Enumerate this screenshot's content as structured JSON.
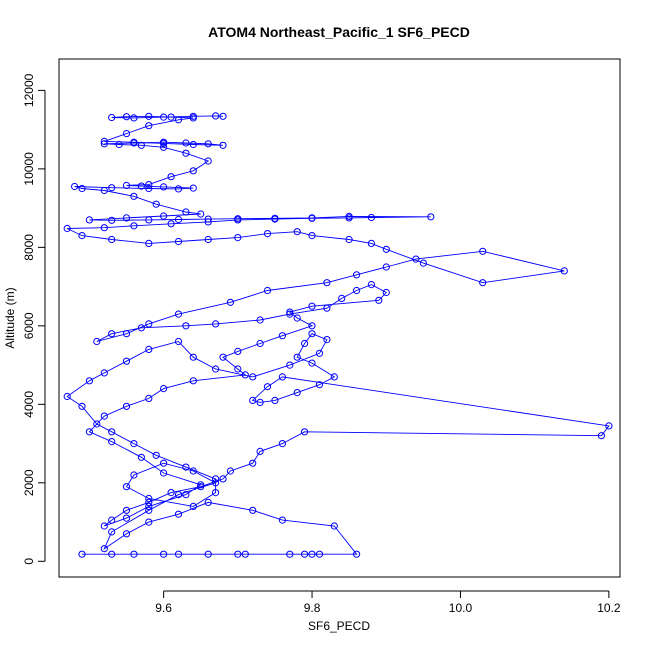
{
  "chart_data": {
    "type": "line",
    "title": "ATOM4 Northeast_Pacific_1 SF6_PECD",
    "xlabel": "SF6_PECD",
    "ylabel": "Altitude (m)",
    "xlim": [
      9.459,
      10.215
    ],
    "ylim": [
      -400,
      12800
    ],
    "xticks": [
      9.6,
      9.8,
      10.0,
      10.2
    ],
    "xtick_labels": [
      "9.6",
      "9.8",
      "10.0",
      "10.2"
    ],
    "yticks": [
      0,
      2000,
      4000,
      6000,
      8000,
      10000,
      12000
    ],
    "ytick_labels": [
      "0",
      "2000",
      "4000",
      "6000",
      "8000",
      "10000",
      "12000"
    ],
    "markers": "open-circle",
    "grid": false,
    "colors": {
      "series": "#0000ff",
      "axes": "#000000"
    },
    "series": [
      {
        "x": [
          9.49,
          9.53,
          9.56,
          9.6,
          9.62,
          9.66,
          9.7,
          9.71,
          9.77,
          9.79,
          9.8,
          9.81,
          9.86,
          9.83,
          9.76,
          9.72,
          9.66,
          9.62,
          9.58,
          9.55,
          9.52,
          9.53,
          9.58,
          9.62,
          9.67,
          9.64,
          9.6,
          9.56,
          9.55,
          9.58,
          9.64,
          9.67,
          9.67,
          9.63,
          9.59,
          9.56,
          9.53,
          9.51,
          9.49,
          9.47,
          9.5,
          9.52,
          9.55,
          9.58,
          9.62,
          9.64,
          9.67,
          9.72,
          9.77,
          9.81,
          9.82,
          9.8,
          9.79,
          9.78,
          9.8,
          9.83,
          9.81,
          9.78,
          9.75,
          9.73,
          9.72,
          9.74,
          9.76,
          10.2,
          10.19,
          9.79,
          9.76,
          9.73,
          9.72,
          9.69,
          9.68,
          9.65,
          9.61,
          9.58,
          9.55,
          9.53,
          9.52,
          9.55,
          9.58,
          9.63,
          9.65,
          9.6,
          9.57,
          9.53,
          9.5,
          9.52,
          9.55,
          9.58,
          9.6,
          9.64,
          9.71,
          9.7,
          9.68,
          9.7,
          9.73,
          9.76,
          9.8,
          9.78,
          9.77,
          9.8,
          9.89,
          9.9,
          9.88,
          9.86,
          9.84,
          9.82,
          9.77,
          9.73,
          9.67,
          9.63,
          9.57,
          9.53,
          9.51,
          9.55,
          9.58,
          9.62,
          9.69,
          9.74,
          9.82,
          9.86,
          9.9,
          9.94,
          10.03,
          10.14,
          10.03,
          9.95,
          9.9,
          9.88,
          9.85,
          9.8,
          9.78,
          9.74,
          9.7,
          9.66,
          9.62,
          9.58,
          9.53,
          9.49,
          9.47,
          9.52,
          9.56,
          9.61,
          9.66,
          9.7,
          9.75,
          9.8,
          9.85,
          9.88,
          9.96,
          9.85,
          9.8,
          9.75,
          9.7,
          9.66,
          9.62,
          9.58,
          9.53,
          9.5,
          9.55,
          9.6,
          9.65,
          9.63,
          9.59,
          9.56,
          9.52,
          9.49,
          9.48,
          9.53,
          9.58,
          9.62,
          9.64,
          9.6,
          9.57,
          9.55,
          9.58,
          9.61,
          9.64,
          9.66,
          9.63,
          9.6,
          9.57,
          9.54,
          9.52,
          9.56,
          9.6,
          9.63,
          9.66,
          9.68,
          9.64,
          9.6,
          9.56,
          9.52,
          9.55,
          9.58,
          9.62,
          9.64,
          9.61,
          9.58,
          9.55,
          9.53,
          9.56,
          9.6,
          9.64,
          9.67,
          9.68
        ],
        "y": [
          180,
          180,
          180,
          180,
          180,
          180,
          180,
          180,
          180,
          180,
          180,
          180,
          180,
          900,
          1050,
          1300,
          1500,
          1200,
          1000,
          700,
          320,
          750,
          1300,
          1700,
          2000,
          2300,
          2500,
          2200,
          1900,
          1600,
          1400,
          1750,
          2100,
          2400,
          2700,
          3000,
          3300,
          3500,
          3950,
          4200,
          4600,
          4800,
          5100,
          5400,
          5600,
          5200,
          4900,
          4700,
          5000,
          5300,
          5650,
          5800,
          5550,
          5200,
          5050,
          4700,
          4500,
          4300,
          4100,
          4050,
          4100,
          4450,
          4700,
          3450,
          3200,
          3300,
          3000,
          2800,
          2500,
          2300,
          2100,
          1900,
          1750,
          1500,
          1300,
          1050,
          900,
          1100,
          1400,
          1700,
          1950,
          2250,
          2650,
          3050,
          3300,
          3700,
          3950,
          4150,
          4400,
          4600,
          4750,
          4900,
          5200,
          5350,
          5550,
          5750,
          6000,
          6200,
          6350,
          6500,
          6650,
          6850,
          7050,
          6900,
          6700,
          6450,
          6300,
          6150,
          6050,
          6000,
          5950,
          5800,
          5600,
          5800,
          6050,
          6300,
          6600,
          6900,
          7100,
          7300,
          7500,
          7700,
          7900,
          7400,
          7100,
          7600,
          7950,
          8100,
          8200,
          8300,
          8400,
          8350,
          8250,
          8200,
          8150,
          8100,
          8200,
          8300,
          8480,
          8500,
          8550,
          8600,
          8650,
          8700,
          8720,
          8740,
          8750,
          8760,
          8780,
          8790,
          8750,
          8740,
          8730,
          8720,
          8710,
          8700,
          8690,
          8700,
          8750,
          8800,
          8850,
          8900,
          9100,
          9300,
          9450,
          9500,
          9550,
          9520,
          9500,
          9490,
          9510,
          9540,
          9560,
          9580,
          9600,
          9800,
          9950,
          10200,
          10400,
          10550,
          10600,
          10620,
          10640,
          10660,
          10680,
          10660,
          10640,
          10600,
          10620,
          10650,
          10680,
          10700,
          10900,
          11100,
          11250,
          11300,
          11320,
          11340,
          11330,
          11310,
          11300,
          11320,
          11340,
          11350,
          11340
        ]
      }
    ]
  }
}
